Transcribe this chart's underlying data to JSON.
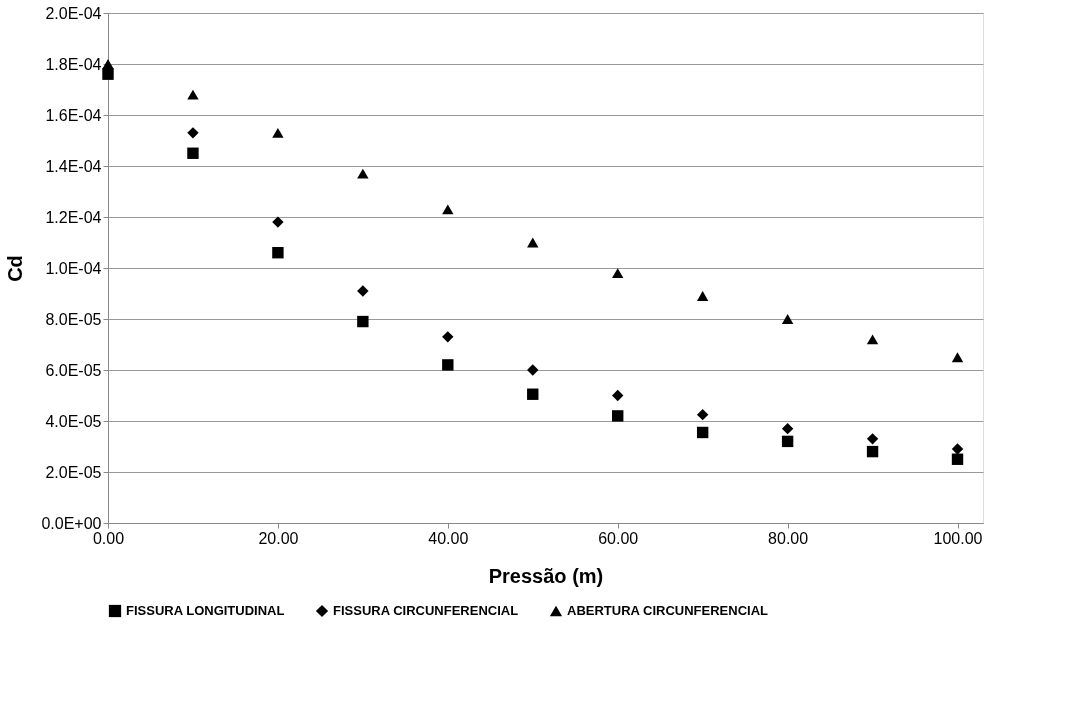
{
  "chart_data": {
    "type": "scatter",
    "xlabel": "Pressão (m)",
    "ylabel": "Cd",
    "x": [
      0,
      10,
      20,
      30,
      40,
      50,
      60,
      70,
      80,
      90,
      100
    ],
    "series": [
      {
        "name": "FISSURA LONGITUDINAL",
        "color": "#000000",
        "marker": "square",
        "values": [
          0.000176,
          0.000145,
          0.000106,
          7.9e-05,
          6.2e-05,
          5.05e-05,
          4.2e-05,
          3.55e-05,
          3.2e-05,
          2.8e-05,
          2.5e-05
        ]
      },
      {
        "name": "FISSURA CIRCUNFERENCIAL",
        "color": "#000000",
        "marker": "diamond",
        "values": [
          0.000178,
          0.000153,
          0.000118,
          9.1e-05,
          7.3e-05,
          6e-05,
          5e-05,
          4.25e-05,
          3.7e-05,
          3.3e-05,
          2.9e-05
        ]
      },
      {
        "name": "ABERTURA CIRCUNFERENCIAL",
        "color": "#000000",
        "marker": "triangle",
        "values": [
          0.00018,
          0.000168,
          0.000153,
          0.000137,
          0.000123,
          0.00011,
          9.8e-05,
          8.9e-05,
          8e-05,
          7.2e-05,
          6.5e-05
        ]
      }
    ],
    "xlim": [
      0,
      103
    ],
    "xticks": [
      {
        "value": 0,
        "label": "0.00"
      },
      {
        "value": 20,
        "label": "20.00"
      },
      {
        "value": 40,
        "label": "40.00"
      },
      {
        "value": 60,
        "label": "60.00"
      },
      {
        "value": 80,
        "label": "80.00"
      },
      {
        "value": 100,
        "label": "100.00"
      }
    ],
    "ylim": [
      0,
      0.0002
    ],
    "yticks": [
      {
        "value": 0,
        "label": "0.0E+00"
      },
      {
        "value": 2e-05,
        "label": "2.0E-05"
      },
      {
        "value": 4e-05,
        "label": "4.0E-05"
      },
      {
        "value": 6e-05,
        "label": "6.0E-05"
      },
      {
        "value": 8e-05,
        "label": "8.0E-05"
      },
      {
        "value": 0.0001,
        "label": "1.0E-04"
      },
      {
        "value": 0.00012,
        "label": "1.2E-04"
      },
      {
        "value": 0.00014,
        "label": "1.4E-04"
      },
      {
        "value": 0.00016,
        "label": "1.6E-04"
      },
      {
        "value": 0.00018,
        "label": "1.8E-04"
      },
      {
        "value": 0.0002,
        "label": "2.0E-04"
      }
    ],
    "grid": "y",
    "legend": "bottom"
  }
}
